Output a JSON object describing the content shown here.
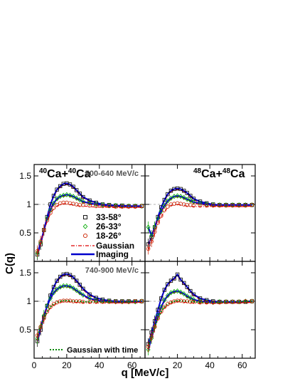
{
  "figure": {
    "ylabel": "C(q)",
    "xlabel": "q [MeV/c]"
  },
  "panels": [
    {
      "system": {
        "pre1": "40",
        "el1": "Ca+",
        "pre2": "40",
        "el2": "Ca"
      },
      "pt_range": "500-640 MeV/c"
    },
    {
      "system": {
        "pre1": "48",
        "el1": "Ca+",
        "pre2": "48",
        "el2": "Ca"
      },
      "pt_range": ""
    },
    {
      "system": null,
      "pt_range": "740-900 MeV/c"
    },
    {
      "system": null,
      "pt_range": ""
    }
  ],
  "legend": {
    "marker_entries": [
      {
        "label": "33-58°",
        "marker": "square",
        "color": "#000000"
      },
      {
        "label": "26-33°",
        "marker": "diamond",
        "color": "#00aa00"
      },
      {
        "label": "18-26°",
        "marker": "circle",
        "color": "#cc2200"
      }
    ],
    "line_entries": [
      {
        "label": "Gaussian",
        "style": "dash-dot",
        "color": "#dd0000"
      },
      {
        "label": "Imaging",
        "style": "solid",
        "color": "#0000cc"
      }
    ],
    "time_entry": {
      "label": "Gaussian with time",
      "style": "dotted",
      "color": "#008800"
    }
  },
  "chart_data": [
    {
      "type": "scatter",
      "panel": "top-left",
      "xlim": [
        0,
        68
      ],
      "ylim": [
        0,
        1.7
      ],
      "xticks": [
        0,
        20,
        40,
        60
      ],
      "yticks": [
        0.5,
        1,
        1.5
      ],
      "series": [
        {
          "name": "33-58°",
          "x": [
            2,
            4,
            6,
            8,
            10,
            12,
            14,
            16,
            18,
            20,
            22,
            24,
            26,
            28,
            30,
            34,
            38,
            42,
            46,
            50,
            54,
            58,
            62,
            66
          ],
          "y": [
            0.12,
            0.3,
            0.55,
            0.78,
            1.0,
            1.15,
            1.26,
            1.32,
            1.36,
            1.37,
            1.35,
            1.31,
            1.25,
            1.19,
            1.13,
            1.07,
            1.03,
            1.0,
            0.99,
            0.98,
            0.98,
            0.97,
            0.97,
            0.97
          ]
        },
        {
          "name": "26-33°",
          "x": [
            2,
            4,
            6,
            8,
            10,
            12,
            14,
            16,
            18,
            20,
            22,
            24,
            26,
            28,
            30,
            34,
            38,
            42,
            46,
            50,
            54,
            58,
            62,
            66
          ],
          "y": [
            0.15,
            0.33,
            0.55,
            0.75,
            0.9,
            1.02,
            1.1,
            1.14,
            1.16,
            1.17,
            1.16,
            1.14,
            1.11,
            1.08,
            1.05,
            1.02,
            1.0,
            0.99,
            0.98,
            0.98,
            0.97,
            0.97,
            0.97,
            0.97
          ]
        },
        {
          "name": "18-26°",
          "x": [
            2,
            4,
            6,
            8,
            10,
            12,
            14,
            16,
            18,
            20,
            22,
            24,
            26,
            28,
            30,
            34,
            38,
            42,
            46,
            50,
            54,
            58,
            62,
            66
          ],
          "y": [
            0.18,
            0.35,
            0.55,
            0.72,
            0.85,
            0.94,
            0.99,
            1.02,
            1.03,
            1.03,
            1.02,
            1.01,
            1.0,
            0.99,
            0.99,
            0.98,
            0.97,
            0.97,
            0.97,
            0.96,
            0.96,
            0.96,
            0.96,
            0.97
          ]
        }
      ]
    },
    {
      "type": "scatter",
      "panel": "top-right",
      "xlim": [
        0,
        68
      ],
      "ylim": [
        0,
        1.7
      ],
      "xticks": [
        0,
        20,
        40,
        60
      ],
      "yticks": [
        0.5,
        1,
        1.5
      ],
      "series": [
        {
          "name": "33-58°",
          "x": [
            2,
            4,
            6,
            8,
            10,
            12,
            14,
            16,
            18,
            20,
            22,
            24,
            26,
            28,
            30,
            34,
            38,
            42,
            46,
            50,
            54,
            58,
            62,
            66
          ],
          "y": [
            0.3,
            0.42,
            0.6,
            0.78,
            0.95,
            1.08,
            1.18,
            1.24,
            1.27,
            1.28,
            1.27,
            1.24,
            1.2,
            1.15,
            1.1,
            1.05,
            1.02,
            1.0,
            0.99,
            0.99,
            0.99,
            0.99,
            0.99,
            0.99
          ]
        },
        {
          "name": "26-33°",
          "x": [
            2,
            4,
            6,
            8,
            10,
            12,
            14,
            16,
            18,
            20,
            22,
            24,
            26,
            28,
            30,
            34,
            38,
            42,
            46,
            50,
            54,
            58,
            62,
            66
          ],
          "y": [
            0.6,
            0.45,
            0.6,
            0.75,
            0.88,
            0.98,
            1.06,
            1.11,
            1.14,
            1.15,
            1.14,
            1.12,
            1.09,
            1.07,
            1.04,
            1.02,
            1.0,
            0.99,
            0.99,
            0.99,
            0.99,
            0.99,
            0.99,
            0.99
          ]
        },
        {
          "name": "18-26°",
          "x": [
            2,
            4,
            6,
            8,
            10,
            12,
            14,
            16,
            18,
            20,
            22,
            24,
            26,
            28,
            30,
            34,
            38,
            42,
            46,
            50,
            54,
            58,
            62,
            66
          ],
          "y": [
            0.22,
            0.35,
            0.52,
            0.68,
            0.8,
            0.9,
            0.96,
            1.0,
            1.01,
            1.02,
            1.01,
            1.0,
            0.99,
            0.99,
            0.98,
            0.98,
            0.98,
            0.98,
            0.98,
            0.98,
            0.98,
            0.98,
            0.98,
            0.99
          ]
        }
      ]
    },
    {
      "type": "scatter",
      "panel": "bottom-left",
      "xlim": [
        0,
        68
      ],
      "ylim": [
        0,
        1.7
      ],
      "xticks": [
        0,
        20,
        40,
        60
      ],
      "yticks": [
        0.5,
        1,
        1.5
      ],
      "series": [
        {
          "name": "33-58°",
          "x": [
            2,
            4,
            6,
            8,
            10,
            12,
            14,
            16,
            18,
            20,
            22,
            24,
            26,
            28,
            30,
            34,
            38,
            42,
            46,
            50,
            54,
            58,
            62,
            66
          ],
          "y": [
            0.3,
            0.5,
            0.72,
            0.92,
            1.1,
            1.25,
            1.36,
            1.43,
            1.47,
            1.48,
            1.46,
            1.42,
            1.36,
            1.29,
            1.22,
            1.12,
            1.06,
            1.03,
            1.01,
            1.0,
            1.0,
            1.0,
            1.0,
            1.0
          ]
        },
        {
          "name": "26-33°",
          "x": [
            2,
            4,
            6,
            8,
            10,
            12,
            14,
            16,
            18,
            20,
            22,
            24,
            26,
            28,
            30,
            34,
            38,
            42,
            46,
            50,
            54,
            58,
            62,
            66
          ],
          "y": [
            0.35,
            0.55,
            0.75,
            0.92,
            1.05,
            1.15,
            1.21,
            1.25,
            1.27,
            1.27,
            1.26,
            1.23,
            1.19,
            1.15,
            1.11,
            1.05,
            1.02,
            1.0,
            1.0,
            0.99,
            0.99,
            0.99,
            0.99,
            1.0
          ]
        },
        {
          "name": "18-26°",
          "x": [
            2,
            4,
            6,
            8,
            10,
            12,
            14,
            16,
            18,
            20,
            22,
            24,
            26,
            28,
            30,
            34,
            38,
            42,
            46,
            50,
            54,
            58,
            62,
            66
          ],
          "y": [
            0.4,
            0.55,
            0.7,
            0.82,
            0.9,
            0.95,
            0.98,
            1.0,
            1.01,
            1.01,
            1.01,
            1.0,
            1.0,
            1.0,
            0.99,
            0.99,
            0.99,
            0.99,
            0.99,
            0.99,
            0.99,
            0.99,
            1.0,
            1.0
          ]
        }
      ]
    },
    {
      "type": "scatter",
      "panel": "bottom-right",
      "xlim": [
        0,
        68
      ],
      "ylim": [
        0,
        1.7
      ],
      "xticks": [
        0,
        20,
        40,
        60
      ],
      "yticks": [
        0.5,
        1,
        1.5
      ],
      "series": [
        {
          "name": "33-58°",
          "x": [
            2,
            4,
            6,
            8,
            10,
            12,
            14,
            16,
            18,
            20,
            22,
            24,
            26,
            28,
            30,
            34,
            38,
            42,
            46,
            50,
            54,
            58,
            62,
            66
          ],
          "y": [
            0.25,
            0.45,
            0.65,
            0.85,
            1.05,
            1.2,
            1.3,
            1.36,
            1.4,
            1.47,
            1.38,
            1.32,
            1.25,
            1.18,
            1.12,
            1.05,
            1.02,
            1.0,
            0.99,
            0.99,
            0.99,
            0.99,
            0.99,
            1.0
          ]
        },
        {
          "name": "26-33°",
          "x": [
            2,
            4,
            6,
            8,
            10,
            12,
            14,
            16,
            18,
            20,
            22,
            24,
            26,
            28,
            30,
            34,
            38,
            42,
            46,
            50,
            54,
            58,
            62,
            66
          ],
          "y": [
            0.15,
            0.35,
            0.55,
            0.75,
            0.9,
            1.02,
            1.1,
            1.15,
            1.17,
            1.18,
            1.16,
            1.13,
            1.09,
            1.06,
            1.03,
            1.0,
            0.99,
            0.98,
            0.99,
            0.99,
            0.99,
            0.99,
            1.0,
            1.0
          ]
        },
        {
          "name": "18-26°",
          "x": [
            2,
            4,
            6,
            8,
            10,
            12,
            14,
            16,
            18,
            20,
            22,
            24,
            26,
            28,
            30,
            34,
            38,
            42,
            46,
            50,
            54,
            58,
            62,
            66
          ],
          "y": [
            0.2,
            0.38,
            0.55,
            0.7,
            0.82,
            0.9,
            0.95,
            0.98,
            1.0,
            1.01,
            1.01,
            1.0,
            1.0,
            0.99,
            0.99,
            0.98,
            0.98,
            0.98,
            0.98,
            0.99,
            0.99,
            0.99,
            1.0,
            1.0
          ]
        }
      ]
    }
  ]
}
